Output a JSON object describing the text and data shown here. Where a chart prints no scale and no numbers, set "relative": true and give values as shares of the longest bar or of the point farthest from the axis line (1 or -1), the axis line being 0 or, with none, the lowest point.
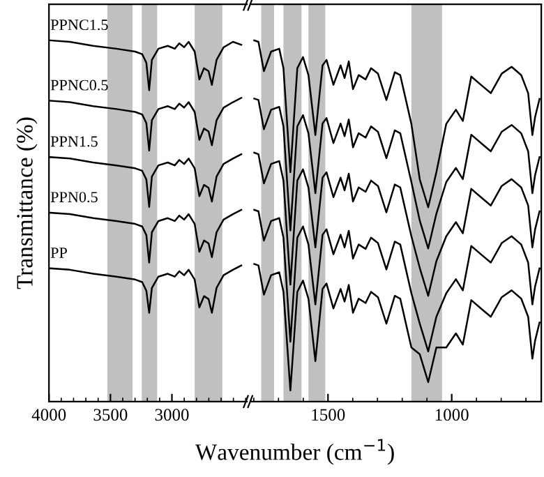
{
  "chart_data": [
    {
      "type": "line",
      "relative": true,
      "ylabel": "Transmittance (%)",
      "xlim": [
        4000,
        2390
      ],
      "xticks": [
        4000,
        {
          "value": 3900,
          "label": null
        },
        {
          "value": 3800,
          "label": null
        },
        {
          "value": 3700,
          "label": null
        },
        {
          "value": 3600,
          "label": null
        },
        3500,
        {
          "value": 3400,
          "label": null
        },
        {
          "value": 3300,
          "label": null
        },
        {
          "value": 3200,
          "label": null
        },
        {
          "value": 3100,
          "label": null
        },
        3000,
        {
          "value": 2900,
          "label": null
        },
        {
          "value": 2800,
          "label": null
        },
        {
          "value": 2700,
          "label": null
        },
        {
          "value": 2600,
          "label": null
        },
        {
          "value": 2500,
          "label": null
        },
        {
          "value": 2400,
          "label": null
        }
      ],
      "bands": [
        {
          "axis": "x",
          "from": 3525,
          "to": 3320,
          "color": "#c0c0c0"
        },
        {
          "axis": "x",
          "from": 3245,
          "to": 3120,
          "color": "#c0c0c0"
        },
        {
          "axis": "x",
          "from": 2815,
          "to": 2590,
          "color": "#c0c0c0"
        }
      ],
      "x": [
        3989,
        3830,
        3640,
        3451,
        3299,
        3242,
        3208,
        3185,
        3163,
        3110,
        3034,
        2977,
        2940,
        2901,
        2864,
        2815,
        2777,
        2739,
        2702,
        2675,
        2637,
        2580,
        2504,
        2436
      ],
      "series": [
        {
          "name": "PPNC1.5",
          "color": "#000000",
          "values": [
            1.0,
            0.996,
            0.985,
            0.977,
            0.969,
            0.962,
            0.938,
            0.862,
            0.946,
            0.977,
            0.985,
            0.977,
            0.992,
            0.981,
            0.996,
            0.969,
            0.892,
            0.923,
            0.915,
            0.877,
            0.946,
            0.981,
            0.996,
            0.988
          ]
        },
        {
          "name": "PPNC0.5",
          "color": "#000000",
          "values": [
            0.833,
            0.829,
            0.818,
            0.81,
            0.802,
            0.795,
            0.771,
            0.695,
            0.779,
            0.81,
            0.818,
            0.81,
            0.825,
            0.814,
            0.829,
            0.802,
            0.725,
            0.756,
            0.748,
            0.71,
            0.779,
            0.814,
            0.829,
            0.841
          ]
        },
        {
          "name": "PPN1.5",
          "color": "#000000",
          "values": [
            0.677,
            0.673,
            0.662,
            0.654,
            0.646,
            0.639,
            0.615,
            0.539,
            0.623,
            0.654,
            0.662,
            0.654,
            0.669,
            0.658,
            0.673,
            0.646,
            0.569,
            0.6,
            0.592,
            0.554,
            0.623,
            0.658,
            0.673,
            0.685
          ]
        },
        {
          "name": "PPN0.5",
          "color": "#000000",
          "values": [
            0.523,
            0.519,
            0.508,
            0.5,
            0.492,
            0.485,
            0.461,
            0.385,
            0.469,
            0.5,
            0.508,
            0.5,
            0.515,
            0.504,
            0.519,
            0.492,
            0.415,
            0.446,
            0.438,
            0.4,
            0.469,
            0.504,
            0.519,
            0.531
          ]
        },
        {
          "name": "PP",
          "color": "#000000",
          "values": [
            0.369,
            0.365,
            0.354,
            0.346,
            0.338,
            0.331,
            0.307,
            0.246,
            0.315,
            0.346,
            0.354,
            0.346,
            0.361,
            0.35,
            0.365,
            0.338,
            0.261,
            0.292,
            0.284,
            0.246,
            0.315,
            0.35,
            0.365,
            0.377
          ]
        }
      ]
    },
    {
      "type": "line",
      "relative": true,
      "xlabel": "Wavenumber (cm$^{−1}$)",
      "xlim": [
        1810,
        638
      ],
      "xticks": [
        {
          "value": 1800,
          "label": null
        },
        {
          "value": 1700,
          "label": null
        },
        {
          "value": 1600,
          "label": null
        },
        1500,
        {
          "value": 1400,
          "label": null
        },
        {
          "value": 1300,
          "label": null
        },
        {
          "value": 1200,
          "label": null
        },
        {
          "value": 1100,
          "label": null
        },
        1000,
        {
          "value": 900,
          "label": null
        },
        {
          "value": 800,
          "label": null
        },
        {
          "value": 700,
          "label": null
        }
      ],
      "bands": [
        {
          "axis": "x",
          "from": 1770,
          "to": 1718,
          "color": "#c0c0c0"
        },
        {
          "axis": "x",
          "from": 1680,
          "to": 1607,
          "color": "#c0c0c0"
        },
        {
          "axis": "x",
          "from": 1579,
          "to": 1511,
          "color": "#c0c0c0"
        },
        {
          "axis": "x",
          "from": 1163,
          "to": 1039,
          "color": "#c0c0c0"
        }
      ],
      "x": [
        1798,
        1781,
        1759,
        1730,
        1697,
        1680,
        1652,
        1624,
        1601,
        1579,
        1551,
        1522,
        1506,
        1478,
        1449,
        1433,
        1416,
        1399,
        1376,
        1348,
        1326,
        1298,
        1264,
        1230,
        1208,
        1163,
        1129,
        1095,
        1062,
        1022,
        983,
        955,
        921,
        882,
        842,
        798,
        758,
        719,
        691,
        674,
        663,
        645
      ],
      "series": [
        {
          "color": "#000000",
          "values": [
            1.0,
            0.996,
            0.915,
            0.969,
            0.977,
            0.923,
            0.635,
            0.923,
            0.954,
            0.904,
            0.738,
            0.931,
            0.946,
            0.877,
            0.931,
            0.896,
            0.942,
            0.865,
            0.904,
            0.892,
            0.923,
            0.908,
            0.835,
            0.912,
            0.904,
            0.769,
            0.615,
            0.538,
            0.635,
            0.769,
            0.808,
            0.777,
            0.9,
            0.877,
            0.854,
            0.908,
            0.927,
            0.904,
            0.854,
            0.738,
            0.788,
            0.838
          ]
        },
        {
          "color": "#000000",
          "values": [
            0.839,
            0.835,
            0.754,
            0.808,
            0.816,
            0.762,
            0.474,
            0.762,
            0.793,
            0.743,
            0.577,
            0.77,
            0.785,
            0.716,
            0.77,
            0.735,
            0.781,
            0.704,
            0.743,
            0.731,
            0.762,
            0.747,
            0.674,
            0.751,
            0.743,
            0.608,
            0.501,
            0.424,
            0.52,
            0.608,
            0.647,
            0.616,
            0.739,
            0.716,
            0.693,
            0.747,
            0.766,
            0.743,
            0.693,
            0.577,
            0.627,
            0.677
          ]
        },
        {
          "color": "#000000",
          "values": [
            0.689,
            0.685,
            0.604,
            0.658,
            0.666,
            0.612,
            0.324,
            0.612,
            0.643,
            0.593,
            0.427,
            0.62,
            0.635,
            0.566,
            0.62,
            0.585,
            0.631,
            0.554,
            0.593,
            0.581,
            0.612,
            0.597,
            0.524,
            0.601,
            0.593,
            0.458,
            0.37,
            0.293,
            0.389,
            0.458,
            0.497,
            0.466,
            0.589,
            0.566,
            0.543,
            0.597,
            0.616,
            0.593,
            0.543,
            0.427,
            0.477,
            0.527
          ]
        },
        {
          "color": "#000000",
          "values": [
            0.531,
            0.527,
            0.446,
            0.5,
            0.508,
            0.454,
            0.166,
            0.454,
            0.485,
            0.435,
            0.269,
            0.462,
            0.477,
            0.408,
            0.462,
            0.427,
            0.473,
            0.396,
            0.435,
            0.423,
            0.454,
            0.439,
            0.366,
            0.443,
            0.435,
            0.3,
            0.216,
            0.139,
            0.235,
            0.3,
            0.339,
            0.308,
            0.431,
            0.408,
            0.385,
            0.439,
            0.458,
            0.435,
            0.385,
            0.269,
            0.319,
            0.369
          ]
        },
        {
          "color": "#000000",
          "values": [
            0.381,
            0.377,
            0.296,
            0.35,
            0.358,
            0.304,
            0.031,
            0.304,
            0.335,
            0.285,
            0.112,
            0.312,
            0.327,
            0.258,
            0.312,
            0.277,
            0.323,
            0.246,
            0.285,
            0.273,
            0.304,
            0.289,
            0.216,
            0.293,
            0.285,
            0.15,
            0.131,
            0.054,
            0.15,
            0.15,
            0.189,
            0.158,
            0.281,
            0.258,
            0.235,
            0.289,
            0.308,
            0.285,
            0.235,
            0.119,
            0.169,
            0.219
          ]
        }
      ]
    }
  ]
}
